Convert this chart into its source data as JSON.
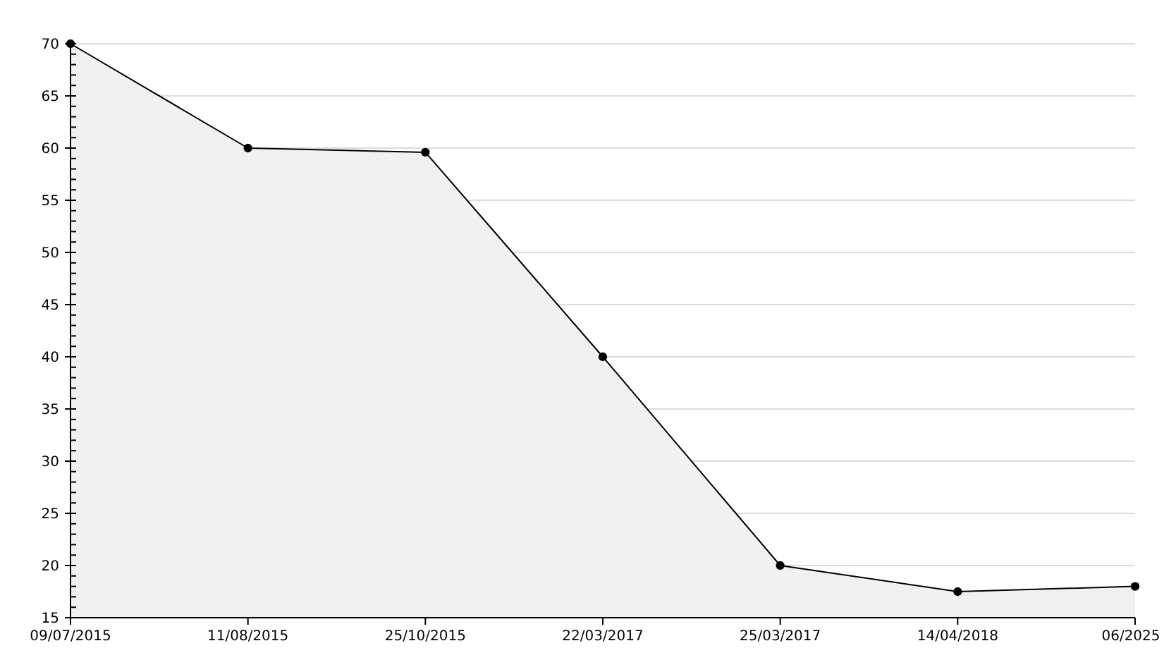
{
  "chart_data": {
    "type": "area",
    "categories": [
      "09/07/2015",
      "11/08/2015",
      "25/10/2015",
      "22/03/2017",
      "25/03/2017",
      "14/04/2018",
      "06/2025"
    ],
    "series": [
      {
        "color": "#000000",
        "values": [
          70,
          60,
          59.6,
          40,
          20,
          17.5,
          18
        ]
      }
    ],
    "ylim": [
      15,
      70
    ],
    "yticks": [
      15,
      {
        "value": 16,
        "label": null
      },
      {
        "value": 17,
        "label": null
      },
      {
        "value": 18,
        "label": null
      },
      {
        "value": 19,
        "label": null
      },
      20,
      {
        "value": 21,
        "label": null
      },
      {
        "value": 22,
        "label": null
      },
      {
        "value": 23,
        "label": null
      },
      {
        "value": 24,
        "label": null
      },
      25,
      {
        "value": 26,
        "label": null
      },
      {
        "value": 27,
        "label": null
      },
      {
        "value": 28,
        "label": null
      },
      {
        "value": 29,
        "label": null
      },
      30,
      {
        "value": 31,
        "label": null
      },
      {
        "value": 32,
        "label": null
      },
      {
        "value": 33,
        "label": null
      },
      {
        "value": 34,
        "label": null
      },
      35,
      {
        "value": 36,
        "label": null
      },
      {
        "value": 37,
        "label": null
      },
      {
        "value": 38,
        "label": null
      },
      {
        "value": 39,
        "label": null
      },
      40,
      {
        "value": 41,
        "label": null
      },
      {
        "value": 42,
        "label": null
      },
      {
        "value": 43,
        "label": null
      },
      {
        "value": 44,
        "label": null
      },
      45,
      {
        "value": 46,
        "label": null
      },
      {
        "value": 47,
        "label": null
      },
      {
        "value": 48,
        "label": null
      },
      {
        "value": 49,
        "label": null
      },
      50,
      {
        "value": 51,
        "label": null
      },
      {
        "value": 52,
        "label": null
      },
      {
        "value": 53,
        "label": null
      },
      {
        "value": 54,
        "label": null
      },
      55,
      {
        "value": 56,
        "label": null
      },
      {
        "value": 57,
        "label": null
      },
      {
        "value": 58,
        "label": null
      },
      {
        "value": 59,
        "label": null
      },
      60,
      {
        "value": 61,
        "label": null
      },
      {
        "value": 62,
        "label": null
      },
      {
        "value": 63,
        "label": null
      },
      {
        "value": 64,
        "label": null
      },
      65,
      {
        "value": 66,
        "label": null
      },
      {
        "value": 67,
        "label": null
      },
      {
        "value": 68,
        "label": null
      },
      {
        "value": 69,
        "label": null
      },
      70
    ],
    "grid": "y",
    "marker": "circle",
    "line_style": "solid"
  }
}
